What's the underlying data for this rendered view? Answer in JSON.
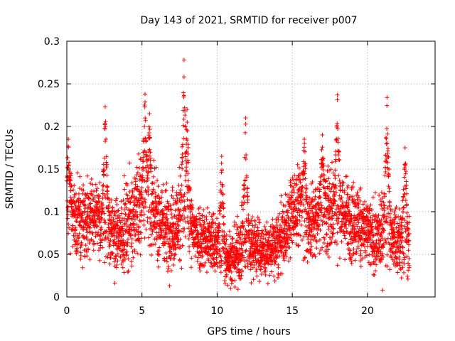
{
  "chart_data": {
    "type": "scatter",
    "title": "Day 143 of 2021, SRMTID for receiver p007",
    "xlabel": "GPS time / hours",
    "ylabel": "SRMTID / TECUs",
    "xlim": [
      0,
      24.5
    ],
    "ylim": [
      0,
      0.3
    ],
    "xticks": [
      0,
      5,
      10,
      15,
      20
    ],
    "xtick_labels": [
      "0",
      "5",
      "10",
      "15",
      "20"
    ],
    "yticks": [
      0,
      0.05,
      0.1,
      0.15,
      0.2,
      0.25,
      0.3
    ],
    "ytick_labels": [
      "0",
      "0.05",
      "0.1",
      "0.15",
      "0.2",
      "0.25",
      "0.3"
    ],
    "grid": true,
    "marker": "plus",
    "series_color": "#ff0000",
    "data_range_hours": [
      0,
      22.8
    ],
    "points_per_hour": 160,
    "envelope": {
      "note": "Approximate typical level and spread read off the plot (data units)",
      "hours": [
        0,
        0.5,
        1,
        1.5,
        2,
        2.5,
        3,
        3.5,
        4,
        4.5,
        5,
        5.5,
        6,
        6.5,
        7,
        7.5,
        8,
        8.5,
        9,
        9.5,
        10,
        10.5,
        11,
        11.5,
        12,
        12.5,
        13,
        13.5,
        14,
        14.5,
        15,
        15.5,
        16,
        16.5,
        17,
        17.5,
        18,
        18.5,
        19,
        19.5,
        20,
        20.5,
        21,
        21.5,
        22,
        22.5,
        22.8
      ],
      "median": [
        0.1,
        0.095,
        0.09,
        0.095,
        0.09,
        0.085,
        0.075,
        0.07,
        0.085,
        0.1,
        0.11,
        0.1,
        0.09,
        0.085,
        0.08,
        0.09,
        0.085,
        0.075,
        0.07,
        0.065,
        0.06,
        0.05,
        0.045,
        0.055,
        0.065,
        0.06,
        0.055,
        0.055,
        0.06,
        0.075,
        0.1,
        0.11,
        0.09,
        0.085,
        0.1,
        0.105,
        0.1,
        0.095,
        0.09,
        0.085,
        0.075,
        0.065,
        0.075,
        0.07,
        0.065,
        0.06,
        0.065
      ],
      "spread": [
        0.035,
        0.03,
        0.03,
        0.03,
        0.03,
        0.03,
        0.025,
        0.025,
        0.03,
        0.035,
        0.04,
        0.035,
        0.03,
        0.03,
        0.03,
        0.035,
        0.03,
        0.025,
        0.025,
        0.025,
        0.02,
        0.02,
        0.02,
        0.025,
        0.025,
        0.025,
        0.02,
        0.02,
        0.025,
        0.025,
        0.03,
        0.03,
        0.03,
        0.03,
        0.035,
        0.035,
        0.03,
        0.03,
        0.03,
        0.03,
        0.025,
        0.025,
        0.03,
        0.025,
        0.025,
        0.025,
        0.025
      ]
    },
    "peaks": [
      {
        "hour": 0.1,
        "value": 0.185
      },
      {
        "hour": 2.55,
        "value": 0.223
      },
      {
        "hour": 5.2,
        "value": 0.238
      },
      {
        "hour": 5.5,
        "value": 0.215
      },
      {
        "hour": 7.8,
        "value": 0.278
      },
      {
        "hour": 8.0,
        "value": 0.22
      },
      {
        "hour": 10.3,
        "value": 0.165
      },
      {
        "hour": 11.9,
        "value": 0.21
      },
      {
        "hour": 15.8,
        "value": 0.185
      },
      {
        "hour": 17.0,
        "value": 0.19
      },
      {
        "hour": 18.0,
        "value": 0.237
      },
      {
        "hour": 21.3,
        "value": 0.234
      },
      {
        "hour": 22.5,
        "value": 0.175
      }
    ]
  }
}
